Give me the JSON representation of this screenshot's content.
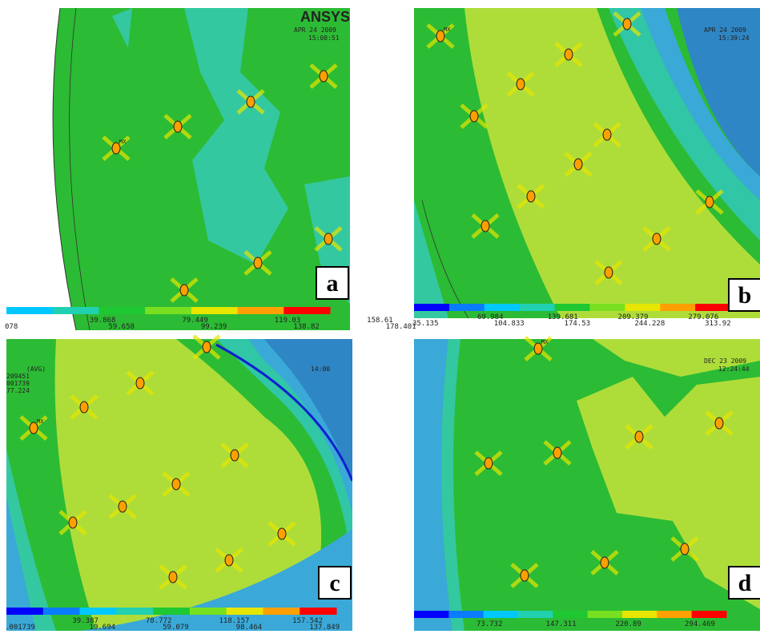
{
  "panels": [
    {
      "label": "a",
      "logo": "ANSYS",
      "date": "APR 24 2009",
      "time": "15:08:51",
      "max_tag": "MX",
      "legend_top": [
        "39.868",
        "79.449",
        "119.03",
        "158.61"
      ],
      "legend_bottom": [
        "078",
        "59.658",
        "99.239",
        "138.82",
        "178.401"
      ]
    },
    {
      "label": "b",
      "date": "APR 24 2009",
      "time": "15:39:24",
      "max_tag": "MX",
      "legend_top": [
        "69.984",
        "139.681",
        "209.379",
        "279.076"
      ],
      "legend_bottom": [
        "35.135",
        "104.833",
        "174.53",
        "244.228",
        "313.92"
      ]
    },
    {
      "label": "c",
      "time": "14:00",
      "notes": [
        "(AVG)",
        "209451",
        "001739",
        "77.224"
      ],
      "max_tag": "MX",
      "legend_top": [
        "39.387",
        "78.772",
        "118.157",
        "157.542"
      ],
      "legend_bottom": [
        ".001739",
        "19.694",
        "59.079",
        "98.464",
        "137.849"
      ]
    },
    {
      "label": "d",
      "date": "DEC 23 2009",
      "time": "12:24:44",
      "max_tag": "MX",
      "legend_top": [
        "73.732",
        "147.311",
        "220.89",
        "294.469"
      ],
      "legend_bottom": []
    }
  ]
}
